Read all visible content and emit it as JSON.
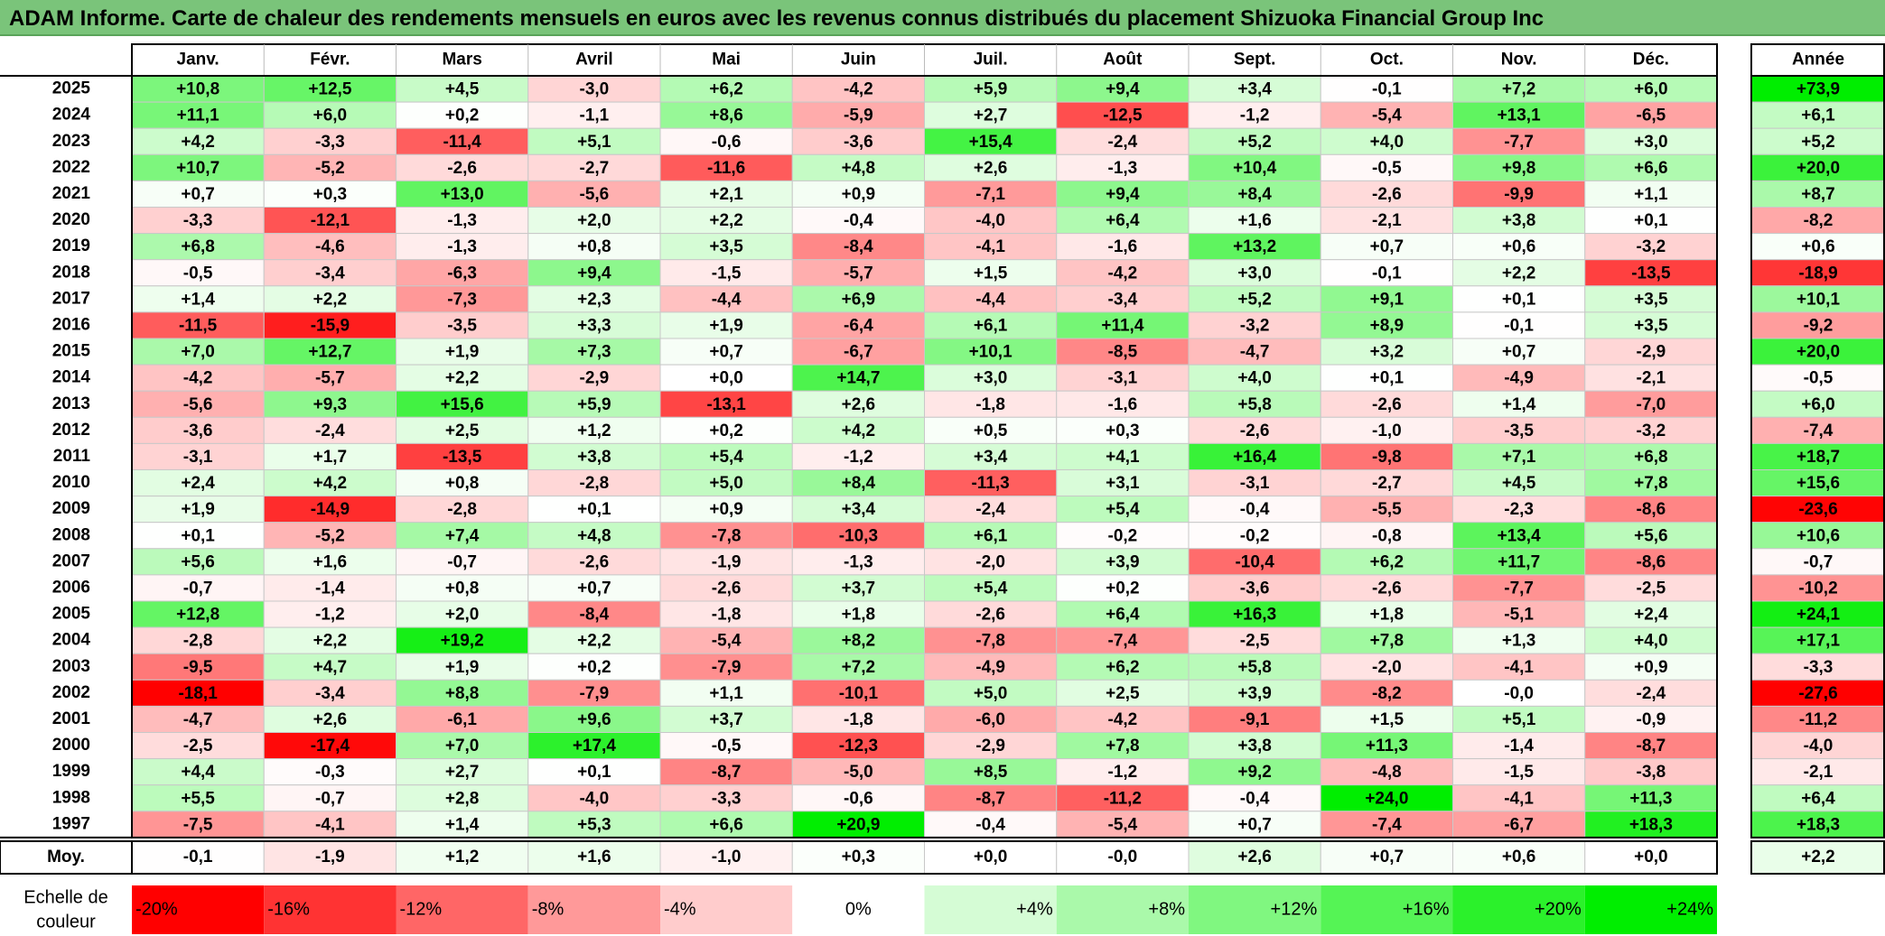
{
  "title": "ADAM Informe. Carte de chaleur des rendements mensuels en euros avec les revenus connus distribués du placement Shizuoka Financial Group Inc",
  "colors": {
    "negative_max": "#ff0000",
    "neutral": "#ffffff",
    "positive_max": "#00ee00",
    "title_bg": "#7ac47a"
  },
  "chart_data": {
    "type": "heatmap",
    "title": "ADAM Informe. Carte de chaleur des rendements mensuels en euros avec les revenus connus distribués du placement Shizuoka Financial Group Inc",
    "columns": [
      "Janv.",
      "Févr.",
      "Mars",
      "Avril",
      "Mai",
      "Juin",
      "Juil.",
      "Août",
      "Sept.",
      "Oct.",
      "Nov.",
      "Déc."
    ],
    "year_column": "Année",
    "rows": [
      {
        "year": "2025",
        "values": [
          "+10,8",
          "+12,5",
          "+4,5",
          "-3,0",
          "+6,2",
          "-4,2",
          "+5,9",
          "+9,4",
          "+3,4",
          "-0,1",
          "+7,2",
          "+6,0"
        ],
        "annual": "+73,9"
      },
      {
        "year": "2024",
        "values": [
          "+11,1",
          "+6,0",
          "+0,2",
          "-1,1",
          "+8,6",
          "-5,9",
          "+2,7",
          "-12,5",
          "-1,2",
          "-5,4",
          "+13,1",
          "-6,5"
        ],
        "annual": "+6,1"
      },
      {
        "year": "2023",
        "values": [
          "+4,2",
          "-3,3",
          "-11,4",
          "+5,1",
          "-0,6",
          "-3,6",
          "+15,4",
          "-2,4",
          "+5,2",
          "+4,0",
          "-7,7",
          "+3,0"
        ],
        "annual": "+5,2"
      },
      {
        "year": "2022",
        "values": [
          "+10,7",
          "-5,2",
          "-2,6",
          "-2,7",
          "-11,6",
          "+4,8",
          "+2,6",
          "-1,3",
          "+10,4",
          "-0,5",
          "+9,8",
          "+6,6"
        ],
        "annual": "+20,0"
      },
      {
        "year": "2021",
        "values": [
          "+0,7",
          "+0,3",
          "+13,0",
          "-5,6",
          "+2,1",
          "+0,9",
          "-7,1",
          "+9,4",
          "+8,4",
          "-2,6",
          "-9,9",
          "+1,1"
        ],
        "annual": "+8,7"
      },
      {
        "year": "2020",
        "values": [
          "-3,3",
          "-12,1",
          "-1,3",
          "+2,0",
          "+2,2",
          "-0,4",
          "-4,0",
          "+6,4",
          "+1,6",
          "-2,1",
          "+3,8",
          "+0,1"
        ],
        "annual": "-8,2"
      },
      {
        "year": "2019",
        "values": [
          "+6,8",
          "-4,6",
          "-1,3",
          "+0,8",
          "+3,5",
          "-8,4",
          "-4,1",
          "-1,6",
          "+13,2",
          "+0,7",
          "+0,6",
          "-3,2"
        ],
        "annual": "+0,6"
      },
      {
        "year": "2018",
        "values": [
          "-0,5",
          "-3,4",
          "-6,3",
          "+9,4",
          "-1,5",
          "-5,7",
          "+1,5",
          "-4,2",
          "+3,0",
          "-0,1",
          "+2,2",
          "-13,5"
        ],
        "annual": "-18,9"
      },
      {
        "year": "2017",
        "values": [
          "+1,4",
          "+2,2",
          "-7,3",
          "+2,3",
          "-4,4",
          "+6,9",
          "-4,4",
          "-3,4",
          "+5,2",
          "+9,1",
          "+0,1",
          "+3,5"
        ],
        "annual": "+10,1"
      },
      {
        "year": "2016",
        "values": [
          "-11,5",
          "-15,9",
          "-3,5",
          "+3,3",
          "+1,9",
          "-6,4",
          "+6,1",
          "+11,4",
          "-3,2",
          "+8,9",
          "-0,1",
          "+3,5"
        ],
        "annual": "-9,2"
      },
      {
        "year": "2015",
        "values": [
          "+7,0",
          "+12,7",
          "+1,9",
          "+7,3",
          "+0,7",
          "-6,7",
          "+10,1",
          "-8,5",
          "-4,7",
          "+3,2",
          "+0,7",
          "-2,9"
        ],
        "annual": "+20,0"
      },
      {
        "year": "2014",
        "values": [
          "-4,2",
          "-5,7",
          "+2,2",
          "-2,9",
          "+0,0",
          "+14,7",
          "+3,0",
          "-3,1",
          "+4,0",
          "+0,1",
          "-4,9",
          "-2,1"
        ],
        "annual": "-0,5"
      },
      {
        "year": "2013",
        "values": [
          "-5,6",
          "+9,3",
          "+15,6",
          "+5,9",
          "-13,1",
          "+2,6",
          "-1,8",
          "-1,6",
          "+5,8",
          "-2,6",
          "+1,4",
          "-7,0"
        ],
        "annual": "+6,0"
      },
      {
        "year": "2012",
        "values": [
          "-3,6",
          "-2,4",
          "+2,5",
          "+1,2",
          "+0,2",
          "+4,2",
          "+0,5",
          "+0,3",
          "-2,6",
          "-1,0",
          "-3,5",
          "-3,2"
        ],
        "annual": "-7,4"
      },
      {
        "year": "2011",
        "values": [
          "-3,1",
          "+1,7",
          "-13,5",
          "+3,8",
          "+5,4",
          "-1,2",
          "+3,4",
          "+4,1",
          "+16,4",
          "-9,8",
          "+7,1",
          "+6,8"
        ],
        "annual": "+18,7"
      },
      {
        "year": "2010",
        "values": [
          "+2,4",
          "+4,2",
          "+0,8",
          "-2,8",
          "+5,0",
          "+8,4",
          "-11,3",
          "+3,1",
          "-3,1",
          "-2,7",
          "+4,5",
          "+7,8"
        ],
        "annual": "+15,6"
      },
      {
        "year": "2009",
        "values": [
          "+1,9",
          "-14,9",
          "-2,8",
          "+0,1",
          "+0,9",
          "+3,4",
          "-2,4",
          "+5,4",
          "-0,4",
          "-5,5",
          "-2,3",
          "-8,6"
        ],
        "annual": "-23,6"
      },
      {
        "year": "2008",
        "values": [
          "+0,1",
          "-5,2",
          "+7,4",
          "+4,8",
          "-7,8",
          "-10,3",
          "+6,1",
          "-0,2",
          "-0,2",
          "-0,8",
          "+13,4",
          "+5,6"
        ],
        "annual": "+10,6"
      },
      {
        "year": "2007",
        "values": [
          "+5,6",
          "+1,6",
          "-0,7",
          "-2,6",
          "-1,9",
          "-1,3",
          "-2,0",
          "+3,9",
          "-10,4",
          "+6,2",
          "+11,7",
          "-8,6"
        ],
        "annual": "-0,7"
      },
      {
        "year": "2006",
        "values": [
          "-0,7",
          "-1,4",
          "+0,8",
          "+0,7",
          "-2,6",
          "+3,7",
          "+5,4",
          "+0,2",
          "-3,6",
          "-2,6",
          "-7,7",
          "-2,5"
        ],
        "annual": "-10,2"
      },
      {
        "year": "2005",
        "values": [
          "+12,8",
          "-1,2",
          "+2,0",
          "-8,4",
          "-1,8",
          "+1,8",
          "-2,6",
          "+6,4",
          "+16,3",
          "+1,8",
          "-5,1",
          "+2,4"
        ],
        "annual": "+24,1"
      },
      {
        "year": "2004",
        "values": [
          "-2,8",
          "+2,2",
          "+19,2",
          "+2,2",
          "-5,4",
          "+8,2",
          "-7,8",
          "-7,4",
          "-2,5",
          "+7,8",
          "+1,3",
          "+4,0"
        ],
        "annual": "+17,1"
      },
      {
        "year": "2003",
        "values": [
          "-9,5",
          "+4,7",
          "+1,9",
          "+0,2",
          "-7,9",
          "+7,2",
          "-4,9",
          "+6,2",
          "+5,8",
          "-2,0",
          "-4,1",
          "+0,9"
        ],
        "annual": "-3,3"
      },
      {
        "year": "2002",
        "values": [
          "-18,1",
          "-3,4",
          "+8,8",
          "-7,9",
          "+1,1",
          "-10,1",
          "+5,0",
          "+2,5",
          "+3,9",
          "-8,2",
          "-0,0",
          "-2,4"
        ],
        "annual": "-27,6"
      },
      {
        "year": "2001",
        "values": [
          "-4,7",
          "+2,6",
          "-6,1",
          "+9,6",
          "+3,7",
          "-1,8",
          "-6,0",
          "-4,2",
          "-9,1",
          "+1,5",
          "+5,1",
          "-0,9"
        ],
        "annual": "-11,2"
      },
      {
        "year": "2000",
        "values": [
          "-2,5",
          "-17,4",
          "+7,0",
          "+17,4",
          "-0,5",
          "-12,3",
          "-2,9",
          "+7,8",
          "+3,8",
          "+11,3",
          "-1,4",
          "-8,7"
        ],
        "annual": "-4,0"
      },
      {
        "year": "1999",
        "values": [
          "+4,4",
          "-0,3",
          "+2,7",
          "+0,1",
          "-8,7",
          "-5,0",
          "+8,5",
          "-1,2",
          "+9,2",
          "-4,8",
          "-1,5",
          "-3,8"
        ],
        "annual": "-2,1"
      },
      {
        "year": "1998",
        "values": [
          "+5,5",
          "-0,7",
          "+2,8",
          "-4,0",
          "-3,3",
          "-0,6",
          "-8,7",
          "-11,2",
          "-0,4",
          "+24,0",
          "-4,1",
          "+11,3"
        ],
        "annual": "+6,4"
      },
      {
        "year": "1997",
        "values": [
          "-7,5",
          "-4,1",
          "+1,4",
          "+5,3",
          "+6,6",
          "+20,9",
          "-0,4",
          "-5,4",
          "+0,7",
          "-7,4",
          "-6,7",
          "+18,3"
        ],
        "annual": "+18,3"
      }
    ],
    "average": {
      "label": "Moy.",
      "values": [
        "-0,1",
        "-1,9",
        "+1,2",
        "+1,6",
        "-1,0",
        "+0,3",
        "+0,0",
        "-0,0",
        "+2,6",
        "+0,7",
        "+0,6",
        "+0,0"
      ],
      "annual": "+2,2"
    },
    "scale": {
      "label": "Echelle de couleur",
      "stops": [
        "-20%",
        "-16%",
        "-12%",
        "-8%",
        "-4%",
        "0%",
        "+4%",
        "+8%",
        "+12%",
        "+16%",
        "+20%",
        "+24%"
      ]
    }
  }
}
